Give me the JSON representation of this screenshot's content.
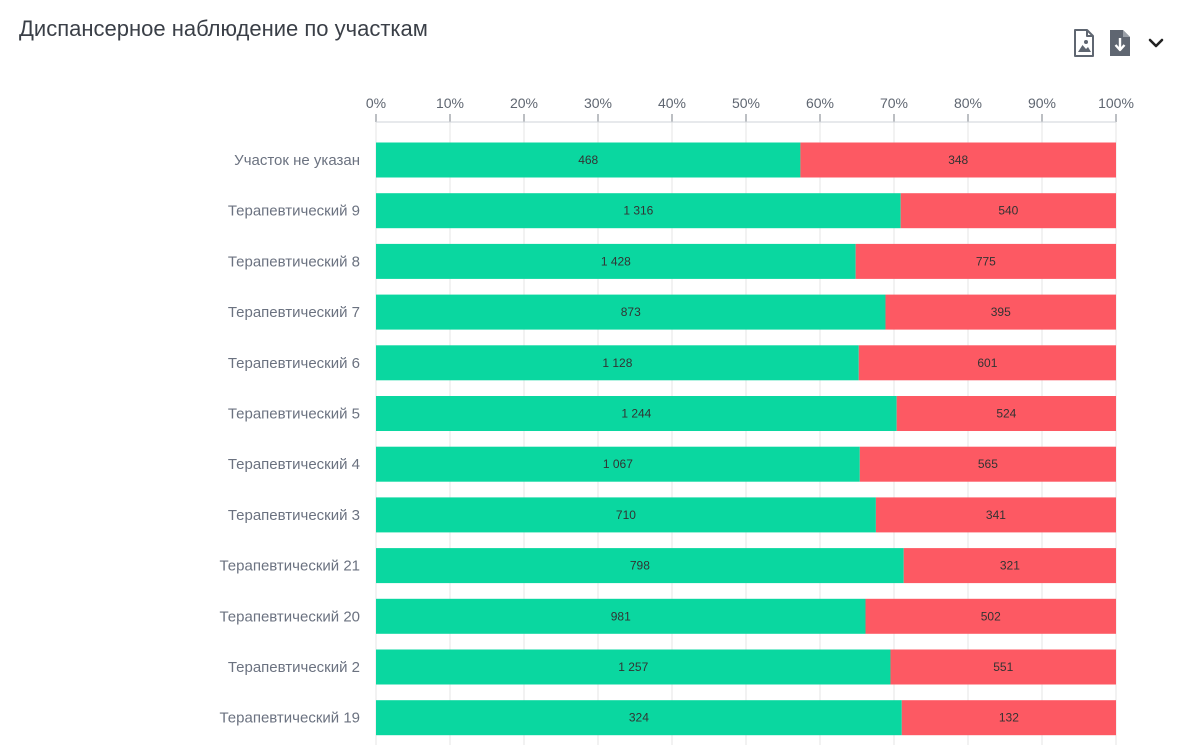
{
  "header": {
    "title": "Диспансерное наблюдение по участкам",
    "icons": [
      "export-image-icon",
      "download-icon",
      "chevron-down-icon"
    ]
  },
  "colors": {
    "green": "#0ad7a0",
    "red": "#fd5963",
    "grid": "#e6e6e6",
    "axis_text": "#5f6671",
    "label_text": "#6b7280"
  },
  "chart_data": {
    "type": "bar",
    "orientation": "horizontal",
    "stacking": "percent",
    "title": "Диспансерное наблюдение по участкам",
    "categories": [
      "Участок не указан",
      "Терапевтический 9",
      "Терапевтический 8",
      "Терапевтический 7",
      "Терапевтический 6",
      "Терапевтический 5",
      "Терапевтический 4",
      "Терапевтический 3",
      "Терапевтический 21",
      "Терапевтический 20",
      "Терапевтический 2",
      "Терапевтический 19"
    ],
    "series": [
      {
        "color": "#0ad7a0",
        "values": [
          468,
          1316,
          1428,
          873,
          1128,
          1244,
          1067,
          710,
          798,
          981,
          1257,
          324
        ],
        "labels": [
          "468",
          "1 316",
          "1 428",
          "873",
          "1 128",
          "1 244",
          "1 067",
          "710",
          "798",
          "981",
          "1 257",
          "324"
        ]
      },
      {
        "color": "#fd5963",
        "values": [
          348,
          540,
          775,
          395,
          601,
          524,
          565,
          341,
          321,
          502,
          551,
          132
        ],
        "labels": [
          "348",
          "540",
          "775",
          "395",
          "601",
          "524",
          "565",
          "341",
          "321",
          "502",
          "551",
          "132"
        ]
      }
    ],
    "x_ticks": [
      "0%",
      "10%",
      "20%",
      "30%",
      "40%",
      "50%",
      "60%",
      "70%",
      "80%",
      "90%",
      "100%"
    ],
    "xlim": [
      0,
      100
    ],
    "x_axis_position": "top",
    "grid": true,
    "legend": "none"
  }
}
